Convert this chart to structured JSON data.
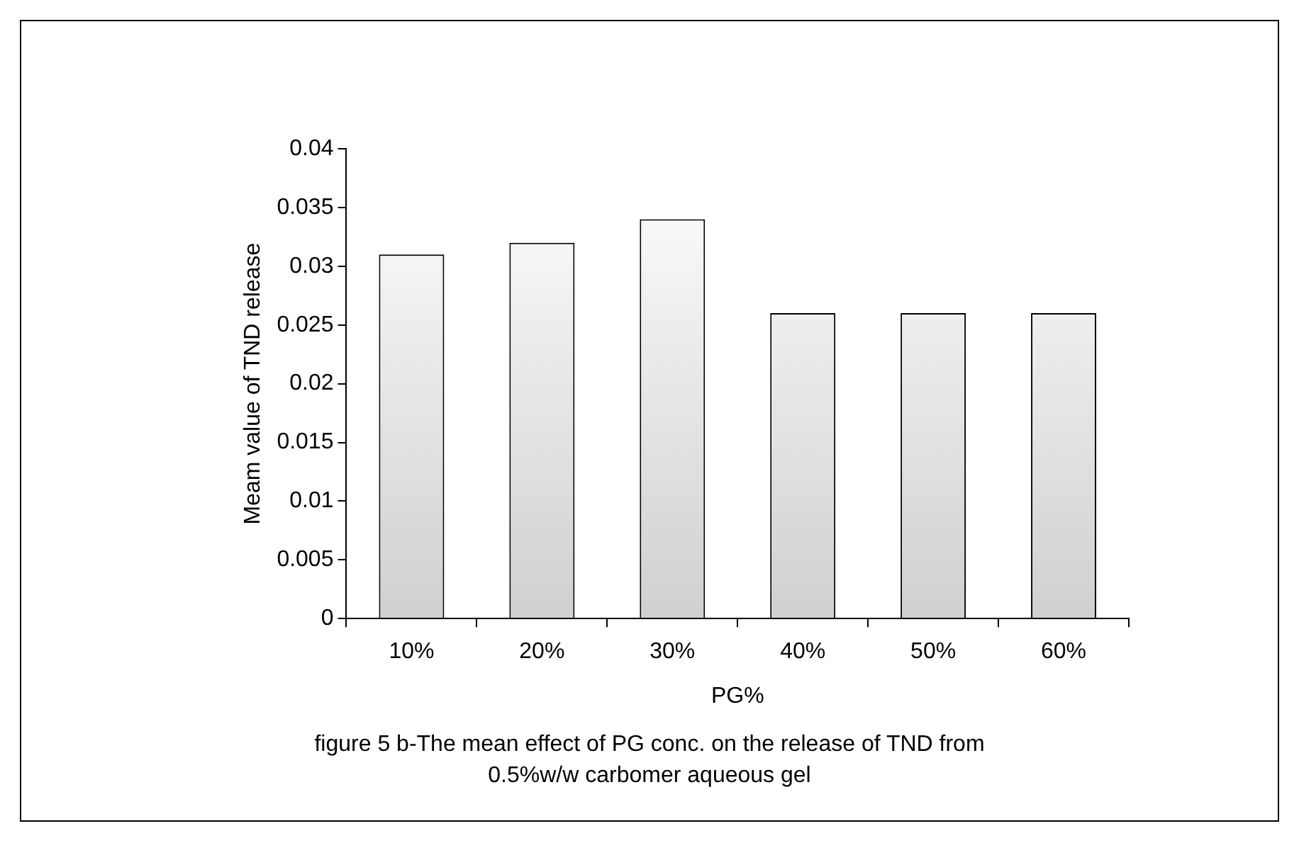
{
  "chart_data": {
    "type": "bar",
    "xlabel": "PG%",
    "ylabel": "Meam value of TND release",
    "categories": [
      "10%",
      "20%",
      "30%",
      "40%",
      "50%",
      "60%"
    ],
    "values": [
      0.031,
      0.032,
      0.034,
      0.026,
      0.026,
      0.026
    ],
    "color": "#d0d0d0",
    "ylim": [
      0,
      0.04
    ],
    "yticks": [
      0,
      0.005,
      0.01,
      0.015,
      0.02,
      0.025,
      0.03,
      0.035,
      0.04
    ],
    "grid": false,
    "legend": false,
    "annotations": [
      "figure 5 b-The mean effect of PG conc. on the release of TND from 0.5%w/w carbomer aqueous gel"
    ]
  }
}
